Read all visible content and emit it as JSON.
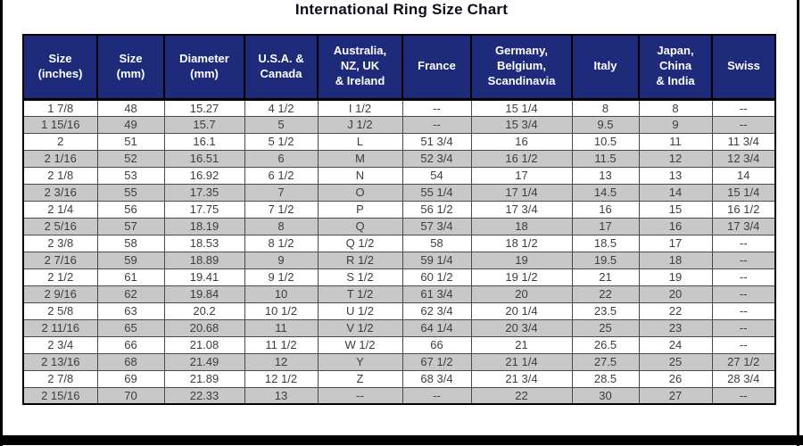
{
  "page": {
    "title": "International Ring Size Chart"
  },
  "colors": {
    "header_bg": "#1e2b7a",
    "header_text": "#ffffff",
    "row_stripe_bg": "#c8c8c8",
    "row_plain_bg": "#ffffff",
    "body_text": "#3d3d3d",
    "grid_line": "#4a4a4a",
    "frame": "#000000"
  },
  "chart_data": {
    "type": "table",
    "title": "International Ring Size Chart",
    "columns": [
      "Size\n(inches)",
      "Size\n(mm)",
      "Diameter\n(mm)",
      "U.S.A. &\nCanada",
      "Australia,\nNZ, UK\n& Ireland",
      "France",
      "Germany,\nBelgium,\nScandinavia",
      "Italy",
      "Japan,\nChina\n& India",
      "Swiss"
    ],
    "rows": [
      [
        "1 7/8",
        "48",
        "15.27",
        "4 1/2",
        "I 1/2",
        "--",
        "15 1/4",
        "8",
        "8",
        "--"
      ],
      [
        "1 15/16",
        "49",
        "15.7",
        "5",
        "J 1/2",
        "--",
        "15 3/4",
        "9.5",
        "9",
        "--"
      ],
      [
        "2",
        "51",
        "16.1",
        "5 1/2",
        "L",
        "51 3/4",
        "16",
        "10.5",
        "11",
        "11 3/4"
      ],
      [
        "2 1/16",
        "52",
        "16.51",
        "6",
        "M",
        "52 3/4",
        "16 1/2",
        "11.5",
        "12",
        "12 3/4"
      ],
      [
        "2 1/8",
        "53",
        "16.92",
        "6 1/2",
        "N",
        "54",
        "17",
        "13",
        "13",
        "14"
      ],
      [
        "2 3/16",
        "55",
        "17.35",
        "7",
        "O",
        "55 1/4",
        "17 1/4",
        "14.5",
        "14",
        "15 1/4"
      ],
      [
        "2 1/4",
        "56",
        "17.75",
        "7 1/2",
        "P",
        "56 1/2",
        "17 3/4",
        "16",
        "15",
        "16 1/2"
      ],
      [
        "2 5/16",
        "57",
        "18.19",
        "8",
        "Q",
        "57 3/4",
        "18",
        "17",
        "16",
        "17 3/4"
      ],
      [
        "2 3/8",
        "58",
        "18.53",
        "8 1/2",
        "Q 1/2",
        "58",
        "18 1/2",
        "18.5",
        "17",
        "--"
      ],
      [
        "2 7/16",
        "59",
        "18.89",
        "9",
        "R 1/2",
        "59 1/4",
        "19",
        "19.5",
        "18",
        "--"
      ],
      [
        "2 1/2",
        "61",
        "19.41",
        "9 1/2",
        "S 1/2",
        "60 1/2",
        "19 1/2",
        "21",
        "19",
        "--"
      ],
      [
        "2 9/16",
        "62",
        "19.84",
        "10",
        "T 1/2",
        "61 3/4",
        "20",
        "22",
        "20",
        "--"
      ],
      [
        "2 5/8",
        "63",
        "20.2",
        "10 1/2",
        "U 1/2",
        "62 3/4",
        "20 1/4",
        "23.5",
        "22",
        "--"
      ],
      [
        "2 11/16",
        "65",
        "20.68",
        "11",
        "V 1/2",
        "64 1/4",
        "20 3/4",
        "25",
        "23",
        "--"
      ],
      [
        "2 3/4",
        "66",
        "21.08",
        "11 1/2",
        "W 1/2",
        "66",
        "21",
        "26.5",
        "24",
        "--"
      ],
      [
        "2 13/16",
        "68",
        "21.49",
        "12",
        "Y",
        "67 1/2",
        "21 1/4",
        "27.5",
        "25",
        "27 1/2"
      ],
      [
        "2 7/8",
        "69",
        "21.89",
        "12 1/2",
        "Z",
        "68 3/4",
        "21 3/4",
        "28.5",
        "26",
        "28 3/4"
      ],
      [
        "2 15/16",
        "70",
        "22.33",
        "13",
        "--",
        "--",
        "22",
        "30",
        "27",
        "--"
      ]
    ]
  }
}
